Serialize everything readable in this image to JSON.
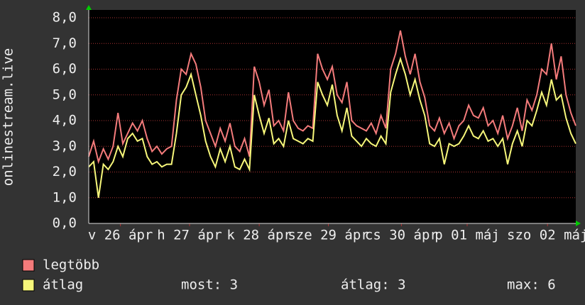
{
  "chart_data": {
    "type": "line",
    "y_label": "onlinestream.live",
    "series": [
      {
        "name": "legtöbb",
        "color": "#f47b7b",
        "values": [
          2.6,
          3.2,
          2.4,
          2.9,
          2.5,
          3.0,
          4.3,
          3.1,
          3.5,
          3.9,
          3.6,
          4.0,
          3.3,
          2.8,
          3.0,
          2.7,
          2.9,
          3.0,
          4.8,
          6.0,
          5.8,
          6.6,
          6.2,
          5.3,
          4.0,
          3.5,
          3.0,
          3.7,
          3.2,
          3.9,
          3.0,
          2.8,
          3.3,
          2.6,
          6.1,
          5.5,
          4.6,
          5.2,
          3.8,
          4.0,
          3.6,
          5.1,
          4.0,
          3.7,
          3.6,
          3.8,
          3.7,
          6.6,
          6.0,
          5.6,
          6.1,
          5.0,
          4.7,
          5.5,
          4.0,
          3.8,
          3.7,
          3.6,
          3.9,
          3.5,
          4.2,
          3.7,
          6.0,
          6.6,
          7.5,
          6.5,
          5.8,
          6.6,
          5.5,
          4.9,
          3.8,
          3.6,
          4.1,
          3.5,
          3.9,
          3.3,
          3.8,
          4.0,
          4.6,
          4.2,
          4.1,
          4.5,
          3.8,
          4.0,
          3.5,
          4.2,
          3.3,
          3.8,
          4.5,
          3.6,
          4.8,
          4.4,
          5.0,
          6.0,
          5.8,
          7.0,
          5.6,
          6.5,
          5.0,
          4.3,
          3.8
        ]
      },
      {
        "name": "átlag",
        "color": "#f7f77a",
        "values": [
          2.2,
          2.4,
          1.0,
          2.3,
          2.1,
          2.4,
          3.0,
          2.6,
          3.3,
          3.5,
          3.2,
          3.3,
          2.6,
          2.3,
          2.4,
          2.2,
          2.3,
          2.3,
          3.5,
          5.0,
          5.3,
          5.8,
          5.0,
          4.2,
          3.2,
          2.6,
          2.2,
          2.9,
          2.4,
          3.0,
          2.2,
          2.1,
          2.5,
          2.1,
          5.0,
          4.2,
          3.5,
          4.1,
          3.1,
          3.3,
          3.0,
          4.0,
          3.3,
          3.2,
          3.1,
          3.3,
          3.2,
          5.5,
          5.0,
          4.6,
          5.4,
          4.2,
          3.6,
          4.5,
          3.4,
          3.2,
          3.0,
          3.3,
          3.1,
          3.0,
          3.4,
          3.1,
          5.1,
          5.8,
          6.4,
          5.8,
          5.0,
          5.6,
          4.8,
          4.2,
          3.1,
          3.0,
          3.3,
          2.3,
          3.1,
          3.0,
          3.1,
          3.4,
          3.8,
          3.4,
          3.3,
          3.6,
          3.2,
          3.3,
          3.0,
          3.3,
          2.3,
          3.1,
          3.6,
          3.0,
          4.0,
          3.8,
          4.4,
          5.1,
          4.6,
          5.6,
          4.8,
          5.0,
          4.1,
          3.5,
          3.1
        ]
      }
    ],
    "ylim": [
      0,
      8
    ],
    "yticks": [
      {
        "value": 0,
        "label": "0,0"
      },
      {
        "value": 1,
        "label": "1,0"
      },
      {
        "value": 2,
        "label": "2,0"
      },
      {
        "value": 3,
        "label": "3,0"
      },
      {
        "value": 4,
        "label": "4,0"
      },
      {
        "value": 5,
        "label": "5,0"
      },
      {
        "value": 6,
        "label": "6,0"
      },
      {
        "value": 7,
        "label": "7,0"
      },
      {
        "value": 8,
        "label": "8,0"
      }
    ],
    "xticks": [
      {
        "value": 6.5,
        "label": "v 26 ápr"
      },
      {
        "value": 20.7,
        "label": "h 27 ápr"
      },
      {
        "value": 35,
        "label": "k 28 ápr"
      },
      {
        "value": 49.2,
        "label": "sze 29 ápr"
      },
      {
        "value": 64.2,
        "label": "cs 30 ápr"
      },
      {
        "value": 77.7,
        "label": "p 01 máj"
      },
      {
        "value": 94.2,
        "label": "szo 02 máj"
      }
    ],
    "grid": true,
    "stats": [
      "most: 3",
      "átlag: 3",
      "max: 6"
    ]
  }
}
